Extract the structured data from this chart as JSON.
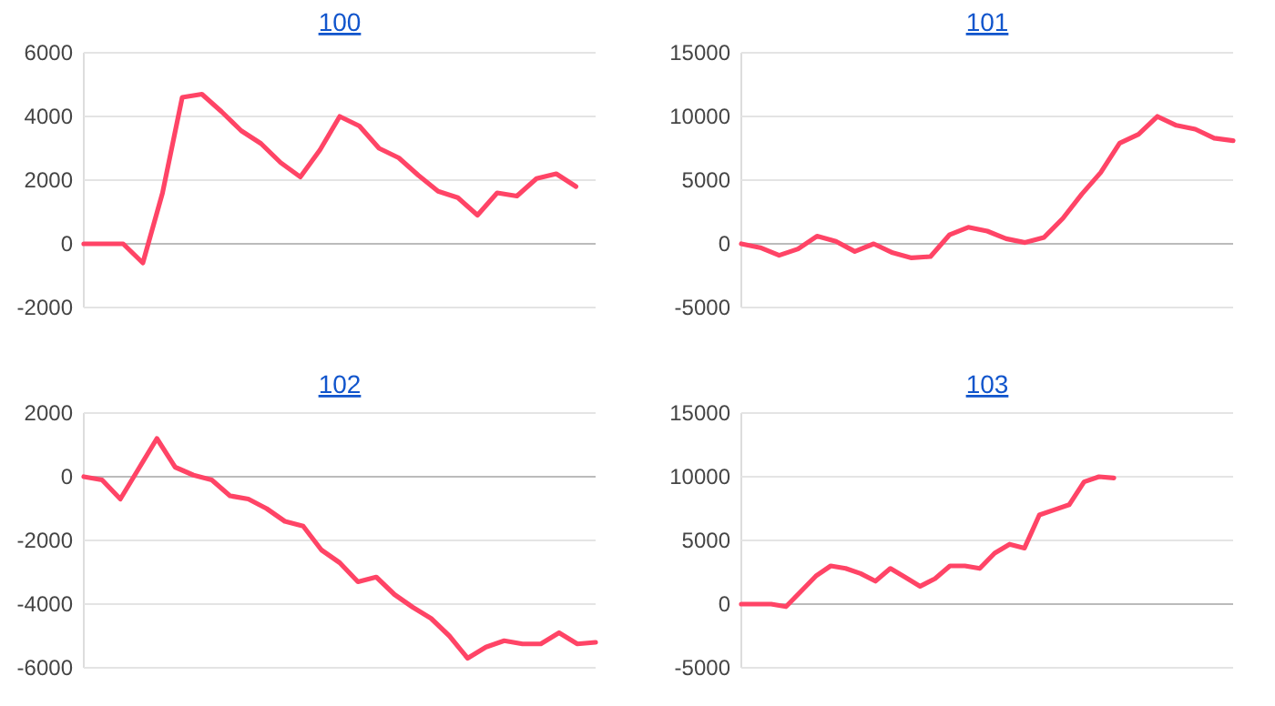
{
  "chart_data": [
    {
      "type": "line",
      "title": "100",
      "categories": [
        null,
        null,
        null,
        null,
        null,
        null,
        null,
        null,
        null,
        null,
        null,
        null,
        null,
        null,
        null,
        null,
        null,
        null,
        null,
        null,
        null,
        null,
        null,
        null,
        null,
        null,
        null
      ],
      "series": [
        {
          "color": "#ff4466",
          "values": [
            0,
            0,
            0,
            -600,
            1600,
            4600,
            4700,
            4150,
            3550,
            3150,
            2550,
            2100,
            2950,
            4000,
            3700,
            3000,
            2700,
            2150,
            1650,
            1450,
            900,
            1600,
            1500,
            2050,
            2200,
            1800,
            null
          ]
        }
      ],
      "ylim": [
        -2000,
        6000
      ],
      "yticks": [
        -2000,
        0,
        2000,
        4000,
        6000
      ],
      "grid": "y",
      "tick_labels": "y",
      "line_style": "solid",
      "marker": "none"
    },
    {
      "type": "line",
      "title": "101",
      "categories": [
        null,
        null,
        null,
        null,
        null,
        null,
        null,
        null,
        null,
        null,
        null,
        null,
        null,
        null,
        null,
        null,
        null,
        null,
        null,
        null,
        null,
        null,
        null,
        null,
        null,
        null,
        null
      ],
      "series": [
        {
          "color": "#ff4466",
          "values": [
            0,
            -300,
            -900,
            -400,
            600,
            200,
            -600,
            0,
            -700,
            -1100,
            -1000,
            700,
            1300,
            1000,
            400,
            100,
            500,
            2000,
            3900,
            5600,
            7900,
            8600,
            10000,
            9300,
            9000,
            8300,
            8100
          ]
        }
      ],
      "ylim": [
        -5000,
        15000
      ],
      "yticks": [
        -5000,
        0,
        5000,
        10000,
        15000
      ],
      "grid": "y",
      "tick_labels": "y",
      "line_style": "solid",
      "marker": "none"
    },
    {
      "type": "line",
      "title": "102",
      "categories": [
        null,
        null,
        null,
        null,
        null,
        null,
        null,
        null,
        null,
        null,
        null,
        null,
        null,
        null,
        null,
        null,
        null,
        null,
        null,
        null,
        null,
        null,
        null,
        null,
        null,
        null,
        null,
        null,
        null
      ],
      "series": [
        {
          "color": "#ff4466",
          "values": [
            0,
            -100,
            -700,
            250,
            1200,
            300,
            50,
            -100,
            -600,
            -700,
            -1000,
            -1400,
            -1550,
            -2300,
            -2700,
            -3300,
            -3150,
            -3700,
            -4100,
            -4450,
            -5000,
            -5700,
            -5350,
            -5150,
            -5250,
            -5250,
            -4900,
            -5250,
            -5200
          ]
        }
      ],
      "ylim": [
        -6000,
        2000
      ],
      "yticks": [
        -6000,
        -4000,
        -2000,
        0,
        2000
      ],
      "grid": "y",
      "tick_labels": "y",
      "line_style": "solid",
      "marker": "none"
    },
    {
      "type": "line",
      "title": "103",
      "categories": [
        null,
        null,
        null,
        null,
        null,
        null,
        null,
        null,
        null,
        null,
        null,
        null,
        null,
        null,
        null,
        null,
        null,
        null,
        null,
        null,
        null,
        null,
        null,
        null,
        null,
        null,
        null,
        null,
        null,
        null,
        null,
        null,
        null,
        null
      ],
      "series": [
        {
          "color": "#ff4466",
          "values": [
            0,
            0,
            0,
            -200,
            1000,
            2200,
            3000,
            2800,
            2400,
            1800,
            2800,
            2100,
            1400,
            2000,
            3000,
            3000,
            2800,
            4000,
            4700,
            4400,
            7000,
            7400,
            7800,
            9600,
            10000,
            9900,
            null,
            null,
            null,
            null,
            null,
            null,
            null,
            null
          ]
        }
      ],
      "ylim": [
        -5000,
        15000
      ],
      "yticks": [
        -5000,
        0,
        5000,
        10000,
        15000
      ],
      "grid": "y",
      "tick_labels": "y",
      "line_style": "solid",
      "marker": "none"
    }
  ]
}
